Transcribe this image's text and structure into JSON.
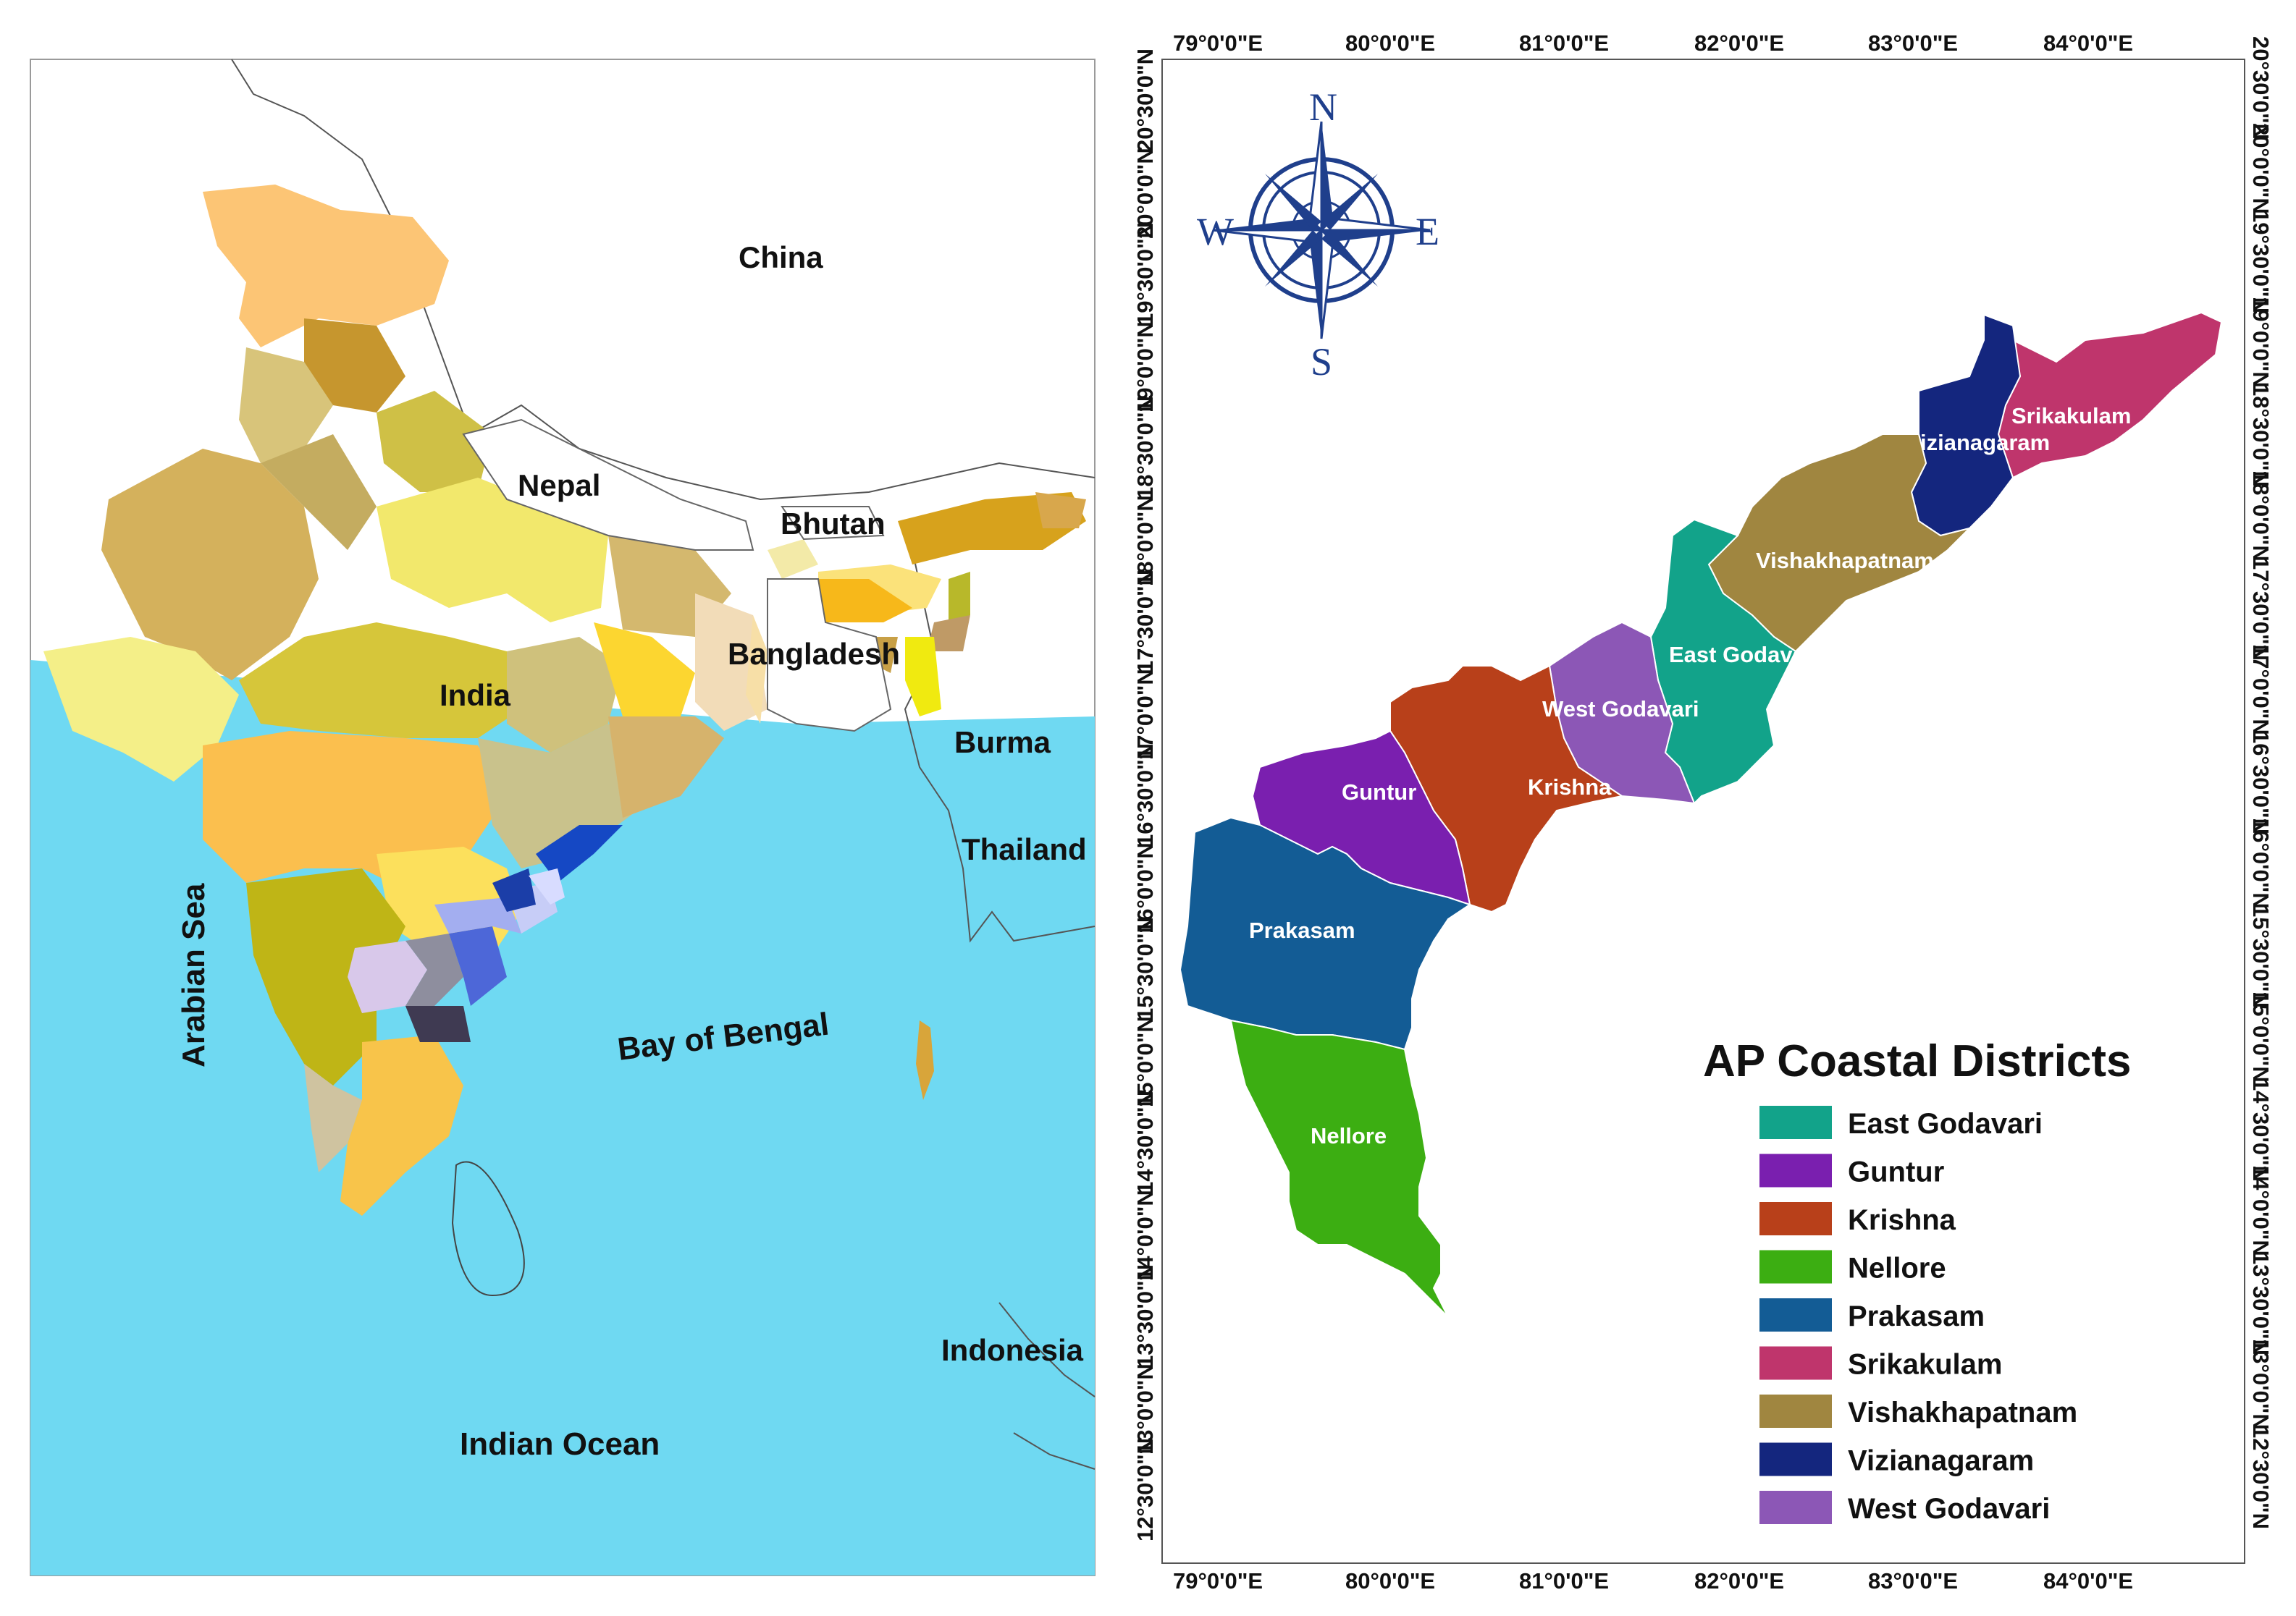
{
  "india_map": {
    "labels": {
      "china": "China",
      "nepal": "Nepal",
      "bhutan": "Bhutan",
      "bangladesh": "Bangladesh",
      "india": "India",
      "burma": "Burma",
      "thailand": "Thailand",
      "arabian_sea": "Arabian Sea",
      "bay_of_bengal": "Bay of Bengal",
      "indonesia": "Indonesia",
      "indian_ocean": "Indian Ocean"
    },
    "colors": {
      "sea": "#6fd9f2",
      "land": "#ffffff"
    }
  },
  "ap_map": {
    "compass": {
      "n": "N",
      "s": "S",
      "e": "E",
      "w": "W",
      "color": "#1f3f8c"
    },
    "lon_ticks": [
      "79°0'0\"E",
      "80°0'0\"E",
      "81°0'0\"E",
      "82°0'0\"E",
      "83°0'0\"E",
      "84°0'0\"E"
    ],
    "lat_ticks": [
      "20°30'0\"N",
      "20°0'0\"N",
      "19°30'0\"N",
      "19°0'0\"N",
      "18°30'0\"N",
      "18°0'0\"N",
      "17°30'0\"N",
      "17°0'0\"N",
      "16°30'0\"N",
      "16°0'0\"N",
      "15°30'0\"N",
      "15°0'0\"N",
      "14°30'0\"N",
      "14°0'0\"N",
      "13°30'0\"N",
      "13°0'0\"N",
      "12°30'0\"N"
    ],
    "district_labels": {
      "srikakulam": "Srikakulam",
      "vizianagaram": "izianagaram",
      "vishakhapatnam": "Vishakhapatnam",
      "east_godavari": "East Godavari",
      "west_godavari": "West Godavari",
      "krishna": "Krishna",
      "guntur": "Guntur",
      "prakasam": "Prakasam",
      "nellore": "Nellore"
    },
    "legend": {
      "title": "AP Coastal Districts",
      "items": [
        {
          "label": "East Godavari",
          "color": "#12a38a"
        },
        {
          "label": "Guntur",
          "color": "#7a1faf"
        },
        {
          "label": "Krishna",
          "color": "#b8401a"
        },
        {
          "label": "Nellore",
          "color": "#3cae12"
        },
        {
          "label": "Prakasam",
          "color": "#135c95"
        },
        {
          "label": "Srikakulam",
          "color": "#bf356c"
        },
        {
          "label": "Vishakhapatnam",
          "color": "#a08640"
        },
        {
          "label": "Vizianagaram",
          "color": "#14267e"
        },
        {
          "label": "West Godavari",
          "color": "#8c57b6"
        }
      ]
    }
  }
}
